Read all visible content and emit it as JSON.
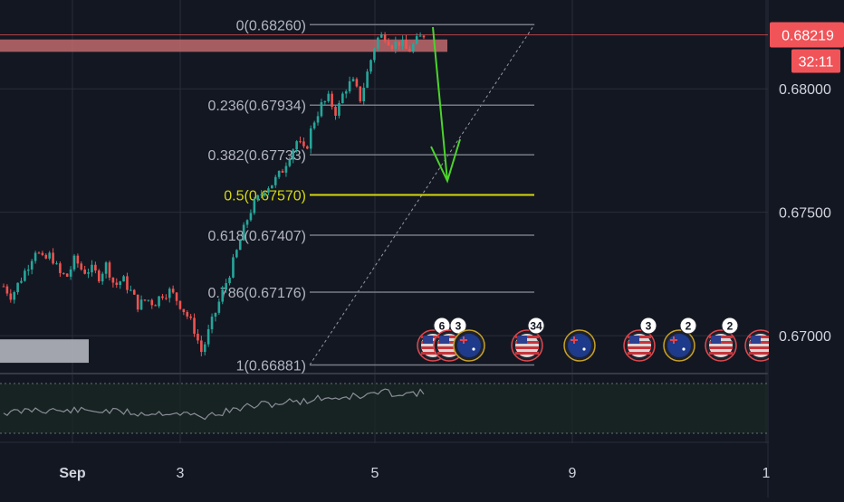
{
  "colors": {
    "background": "#131722",
    "grid": "#2a2e39",
    "up": "#26a69a",
    "down": "#ef5350",
    "fib_line": "#787b86",
    "fib_label": "#b2b5be",
    "fib_highlight": "#d5d80f",
    "arrow": "#4cd32b",
    "resistance_zone": "#c06a6c",
    "support_zone": "#b2b5be",
    "price_tag": "#f05459",
    "oscillator": "#8a8e98",
    "oscillator_fill": "#1a2a24",
    "axis_text": "#d1d4dc"
  },
  "chart_data": {
    "type": "candlestick",
    "x_ticks": [
      "Sep",
      "3",
      "5",
      "9",
      "1"
    ],
    "y_ticks": [
      "0.67000",
      "0.67500",
      "0.68000"
    ],
    "ylim": [
      0.6685,
      0.6836
    ],
    "last_price": "0.68219",
    "countdown": "32:11",
    "fib_levels": [
      {
        "label": "0(0.68260)",
        "value": 0.6826,
        "highlight": false
      },
      {
        "label": "0.236(0.67934)",
        "value": 0.67934,
        "highlight": false
      },
      {
        "label": "0.382(0.67733)",
        "value": 0.67733,
        "highlight": false
      },
      {
        "label": "0.5(0.67570)",
        "value": 0.6757,
        "highlight": true
      },
      {
        "label": "0.618(0.67407)",
        "value": 0.67407,
        "highlight": false
      },
      {
        "label": "0.786(0.67176)",
        "value": 0.67176,
        "highlight": false
      },
      {
        "label": "1(0.66881)",
        "value": 0.66881,
        "highlight": false
      }
    ],
    "zones": [
      {
        "type": "resistance",
        "from": 0.6815,
        "to": 0.682
      },
      {
        "type": "support",
        "from": 0.6689,
        "to": 0.66985
      }
    ],
    "events": [
      {
        "flag": "us",
        "count": "6"
      },
      {
        "flag": "us",
        "count": "3"
      },
      {
        "flag": "au",
        "count": ""
      },
      {
        "flag": "us",
        "count": "34"
      },
      {
        "flag": "au",
        "count": ""
      },
      {
        "flag": "us",
        "count": "3"
      },
      {
        "flag": "au",
        "count": "2"
      },
      {
        "flag": "us",
        "count": "2"
      },
      {
        "flag": "us",
        "count": ""
      }
    ],
    "close_path": [
      0.672,
      0.6716,
      0.6722,
      0.6728,
      0.6735,
      0.673,
      0.6733,
      0.6725,
      0.6724,
      0.6731,
      0.6726,
      0.6727,
      0.6724,
      0.6729,
      0.672,
      0.6723,
      0.6718,
      0.6712,
      0.6715,
      0.6713,
      0.6717,
      0.6718,
      0.6714,
      0.6709,
      0.6703,
      0.6693,
      0.6703,
      0.6712,
      0.6721,
      0.673,
      0.674,
      0.675,
      0.6755,
      0.676,
      0.6762,
      0.6766,
      0.6773,
      0.6779,
      0.6774,
      0.6786,
      0.6793,
      0.6796,
      0.679,
      0.68,
      0.6803,
      0.6796,
      0.6808,
      0.682,
      0.6822,
      0.6818,
      0.6819,
      0.6815,
      0.6819,
      0.6822
    ]
  }
}
